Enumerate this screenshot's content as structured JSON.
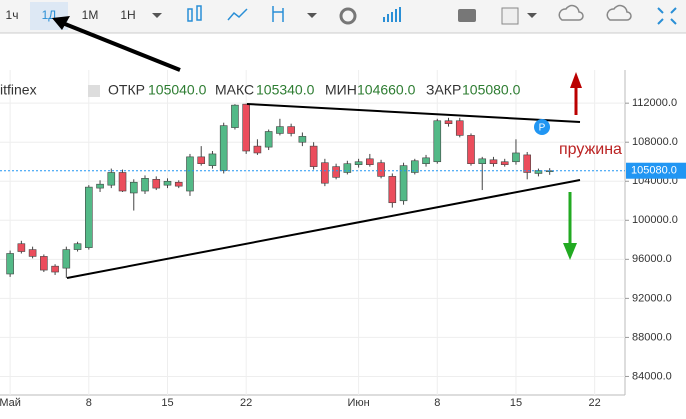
{
  "toolbar": {
    "intervals": [
      "1ч",
      "1Д",
      "1М",
      "1Н"
    ]
  },
  "header": {
    "exchange": "itfinex",
    "fields": [
      {
        "label": "ОТКР",
        "value": "105040.0"
      },
      {
        "label": "МАКС",
        "value": "105340.0"
      },
      {
        "label": "МИН",
        "value": "104660.0"
      },
      {
        "label": "ЗАКР",
        "value": "105080.0"
      }
    ]
  },
  "chart_data": {
    "type": "candlestick",
    "up_color": "#53b987",
    "down_color": "#eb4d5c",
    "x": [
      0,
      1,
      2,
      3,
      4,
      5,
      6,
      7,
      8,
      9,
      10,
      11,
      12,
      13,
      14,
      15,
      16,
      17,
      18,
      19,
      20,
      21,
      22,
      23,
      24,
      25,
      26,
      27,
      28,
      29,
      30,
      31,
      32,
      33,
      34,
      35,
      36,
      37,
      38,
      39,
      40,
      41,
      42,
      43,
      44,
      45,
      46,
      47,
      48
    ],
    "open": [
      94500,
      97600,
      97000,
      96300,
      95300,
      95100,
      97000,
      97200,
      103300,
      103600,
      104900,
      102800,
      103000,
      104200,
      103600,
      103900,
      103000,
      106500,
      105600,
      105100,
      109500,
      111900,
      107600,
      107500,
      108900,
      109600,
      108000,
      107600,
      105900,
      105500,
      104900,
      105700,
      106300,
      105900,
      104500,
      102000,
      104900,
      105800,
      106000,
      110200,
      110200,
      108700,
      105800,
      106200,
      106000,
      106000,
      106700,
      104800,
      105040
    ],
    "high": [
      96900,
      97900,
      97300,
      96500,
      95500,
      97300,
      97800,
      103600,
      104100,
      105300,
      105200,
      104200,
      104600,
      104500,
      104300,
      104100,
      106800,
      107600,
      107100,
      110000,
      111900,
      111950,
      108300,
      109300,
      110400,
      109900,
      109000,
      108000,
      106300,
      105800,
      106100,
      106300,
      106800,
      106200,
      104800,
      105900,
      106300,
      106700,
      110400,
      110500,
      110500,
      108900,
      106500,
      106500,
      106300,
      108300,
      107000,
      105300,
      105340
    ],
    "low": [
      94200,
      96600,
      96100,
      94700,
      94400,
      94100,
      96800,
      97000,
      102900,
      103300,
      102900,
      101000,
      102700,
      103100,
      103300,
      103300,
      102500,
      105600,
      105300,
      104800,
      109300,
      106800,
      106700,
      107200,
      108700,
      108600,
      107600,
      105200,
      103500,
      104200,
      104700,
      105400,
      105500,
      104300,
      101300,
      101600,
      104700,
      105500,
      105800,
      109600,
      108500,
      105600,
      103100,
      105500,
      105500,
      105700,
      104200,
      104500,
      104660
    ],
    "close": [
      96600,
      96800,
      96300,
      94900,
      94700,
      97000,
      97600,
      103400,
      103700,
      104900,
      103000,
      103900,
      104300,
      103300,
      104000,
      103500,
      106500,
      105800,
      106800,
      109700,
      111800,
      107100,
      106900,
      109100,
      109600,
      108900,
      108600,
      105500,
      103800,
      104400,
      105800,
      106000,
      105700,
      104500,
      101800,
      105600,
      106100,
      106400,
      110200,
      109900,
      108700,
      105800,
      106300,
      105800,
      105700,
      106900,
      104900,
      105100,
      105080
    ],
    "xlim": [
      -0.9,
      54.7
    ],
    "xticks": [
      {
        "value": 0,
        "label": "Май"
      },
      {
        "value": 7,
        "label": "8"
      },
      {
        "value": 14,
        "label": "15"
      },
      {
        "value": 21,
        "label": "22"
      },
      {
        "value": 31,
        "label": "Июн"
      },
      {
        "value": 38,
        "label": "8"
      },
      {
        "value": 45,
        "label": "15"
      },
      {
        "value": 52,
        "label": "22"
      }
    ],
    "ylim": [
      82100,
      115400
    ],
    "yticks": [
      {
        "value": 84000,
        "label": "84000.0"
      },
      {
        "value": 88000,
        "label": "88000.0"
      },
      {
        "value": 92000,
        "label": "92000.0"
      },
      {
        "value": 96000,
        "label": "96000.0"
      },
      {
        "value": 100000,
        "label": "100000.0"
      },
      {
        "value": 104000,
        "label": "104000.0"
      },
      {
        "value": 108000,
        "label": "108000.0"
      },
      {
        "value": 112000,
        "label": "112000.0"
      }
    ],
    "grid": true,
    "last_price_label": "105080.0",
    "annotations": [
      "пружина",
      "P"
    ]
  }
}
